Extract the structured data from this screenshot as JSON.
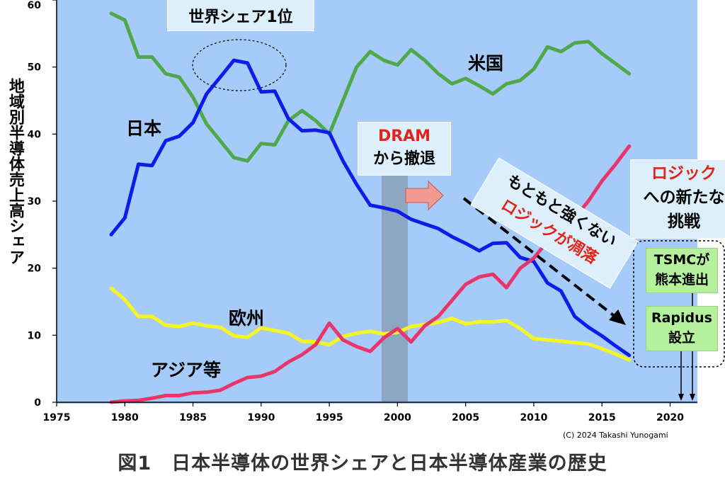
{
  "chart_data": {
    "type": "line",
    "ylabel": "地域別半導体売上高シェア",
    "xlim": [
      1975,
      2022
    ],
    "ylim": [
      0,
      60
    ],
    "x_ticks": [
      "1975",
      "1980",
      "1985",
      "1990",
      "1995",
      "2000",
      "2005",
      "2010",
      "2015",
      "2020"
    ],
    "y_ticks": [
      "0",
      "10",
      "20",
      "30",
      "40",
      "50",
      "60"
    ],
    "x": [
      1979,
      1980,
      1981,
      1982,
      1983,
      1984,
      1985,
      1986,
      1987,
      1988,
      1989,
      1990,
      1991,
      1992,
      1993,
      1994,
      1995,
      1996,
      1997,
      1998,
      1999,
      2000,
      2001,
      2002,
      2003,
      2004,
      2005,
      2006,
      2007,
      2008,
      2009,
      2010,
      2011,
      2012,
      2013,
      2014,
      2015,
      2016,
      2017
    ],
    "series": [
      {
        "name": "米国",
        "color": "#4fa84a",
        "values": [
          58,
          57,
          51.5,
          51.5,
          49,
          48.5,
          45.5,
          41.5,
          39,
          36.5,
          36,
          38.6,
          38.4,
          42,
          43.5,
          42,
          40,
          45,
          50,
          52.3,
          51,
          50.3,
          52.6,
          51,
          49,
          47.5,
          48.3,
          47.2,
          46,
          47.5,
          48,
          49.7,
          53,
          52.3,
          53.6,
          53.8,
          52,
          50.5,
          49
        ]
      },
      {
        "name": "日本",
        "color": "#0b1de8",
        "values": [
          25,
          27.5,
          35.5,
          35.3,
          39,
          39.7,
          41.7,
          46,
          48.5,
          51,
          50.6,
          46.3,
          46.4,
          42.3,
          40.5,
          40.6,
          40.2,
          36,
          32.5,
          29.4,
          29,
          28.5,
          27.3,
          26.6,
          25.9,
          24.7,
          23.7,
          22.6,
          23.7,
          23.8,
          21.6,
          21,
          17.8,
          16.6,
          12.8,
          11.2,
          9.9,
          8.4,
          7
        ]
      },
      {
        "name": "欧州",
        "color": "#f5f523",
        "values": [
          17,
          15.3,
          12.8,
          12.8,
          11.5,
          11.3,
          11.8,
          11.4,
          11.2,
          9.9,
          9.7,
          11.1,
          10.7,
          10.3,
          9.1,
          9,
          8.6,
          9.8,
          10.3,
          10.6,
          10.2,
          10.4,
          11.3,
          11.6,
          11.9,
          12.5,
          11.7,
          12,
          12,
          12.2,
          11,
          9.5,
          9.3,
          9.1,
          8.9,
          8.7,
          8,
          7.2,
          6.3
        ]
      },
      {
        "name": "アジア等",
        "color": "#e8356a",
        "values": [
          0,
          0.2,
          0.3,
          0.6,
          1,
          1,
          1.4,
          1.5,
          1.8,
          2.8,
          3.7,
          3.9,
          4.6,
          6,
          7.1,
          8.6,
          11.8,
          9.3,
          8.3,
          7.6,
          9.6,
          11,
          9,
          11.4,
          12.8,
          15.2,
          17.6,
          18.7,
          19.1,
          17.1,
          20,
          21.5,
          24,
          25.5,
          27.5,
          30,
          33,
          35.5,
          38.2
        ]
      }
    ],
    "series_labels": {
      "us": "米国",
      "japan": "日本",
      "europe": "欧州",
      "asia": "アジア等"
    },
    "grid": false
  },
  "annotations": {
    "top_box": "世界シェア1位",
    "dram_line1": "DRAM",
    "dram_line2": "から撤退",
    "diag_line1": "もともと強くない",
    "diag_line2": "ロジックが凋落",
    "logic_line1": "ロジック",
    "logic_line2": "への新たな",
    "logic_line3": "挑戦",
    "tsmc_line1": "TSMCが",
    "tsmc_line2": "熊本進出",
    "rapidus_line1": "Rapidus",
    "rapidus_line2": "設立"
  },
  "credit": "(C) 2024 Takashi Yunogami",
  "caption": "図1　日本半導体の世界シェアと日本半導体産業の歴史",
  "colors": {
    "plot_bg": "#a6cbf9",
    "band": "#8ba3bd",
    "arrow": "#f19a92"
  }
}
